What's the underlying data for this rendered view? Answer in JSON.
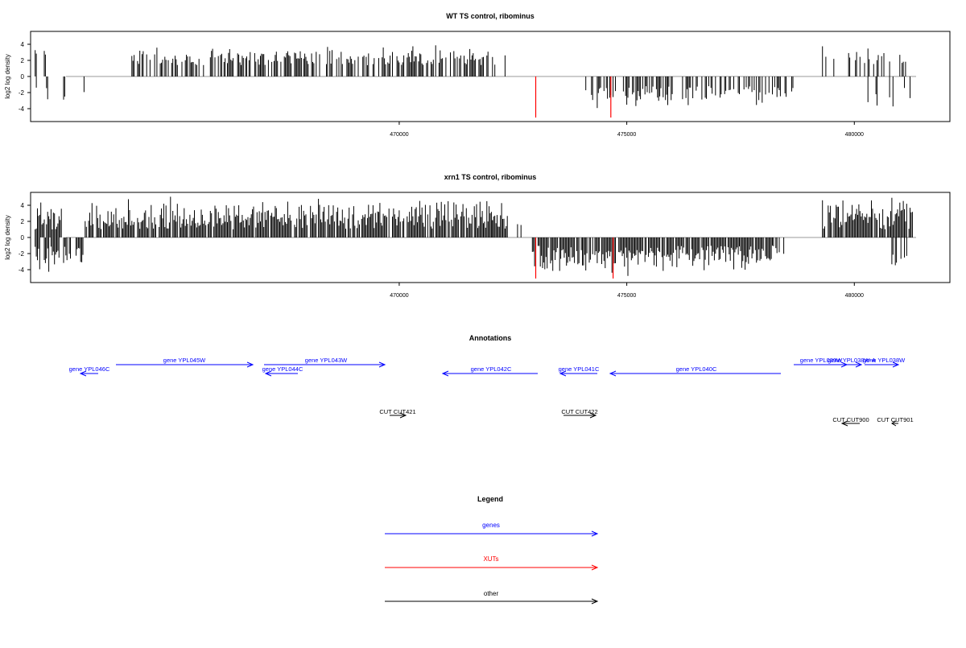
{
  "chart_data": [
    {
      "type": "bar",
      "title": "WT TS control, ribominus",
      "xlabel": "",
      "ylabel": "log2 log density",
      "xlim": [
        461900,
        482100
      ],
      "ylim": [
        -5.6,
        5.6
      ],
      "x_ticks": [
        470000,
        475000,
        480000
      ],
      "x_tick_labels": [
        "470000",
        "475000",
        "480000"
      ],
      "y_ticks": [
        -4,
        -2,
        0,
        2,
        4
      ],
      "y_tick_labels": [
        "-4",
        "-2",
        "0",
        "2",
        "4"
      ],
      "grid": false,
      "bar_color": "#000000",
      "highlight_color": "#ff0000",
      "positive_regions": [
        [
          462000,
          462500,
          0.25
        ],
        [
          464100,
          470600,
          0.55
        ],
        [
          470600,
          472400,
          0.5
        ],
        [
          479200,
          481300,
          0.3
        ]
      ],
      "negative_regions": [
        [
          462000,
          463100,
          0.15
        ],
        [
          474000,
          478800,
          0.45
        ],
        [
          479800,
          480600,
          0.15
        ],
        [
          480600,
          481300,
          0.25
        ]
      ],
      "highlights": [
        [
          473000,
          -5.1
        ],
        [
          474650,
          -5.1
        ]
      ],
      "seed": 7,
      "amp_pos": [
        1.4,
        4.0
      ],
      "amp_neg": [
        1.2,
        4.0
      ]
    },
    {
      "type": "bar",
      "title": "xrn1 TS control, ribominus",
      "xlabel": "",
      "ylabel": "log2 log density",
      "xlim": [
        461900,
        482100
      ],
      "ylim": [
        -5.6,
        5.6
      ],
      "x_ticks": [
        470000,
        475000,
        480000
      ],
      "x_tick_labels": [
        "470000",
        "475000",
        "480000"
      ],
      "y_ticks": [
        -4,
        -2,
        0,
        2,
        4
      ],
      "y_tick_labels": [
        "-4",
        "-2",
        "0",
        "2",
        "4"
      ],
      "grid": false,
      "bar_color": "#000000",
      "highlight_color": "#ff0000",
      "positive_regions": [
        [
          462000,
          462600,
          0.9
        ],
        [
          463100,
          472400,
          0.85
        ],
        [
          472000,
          473000,
          0.15
        ],
        [
          479300,
          481300,
          0.9
        ]
      ],
      "negative_regions": [
        [
          462000,
          463100,
          0.7
        ],
        [
          472900,
          478300,
          0.9
        ],
        [
          478300,
          478500,
          0.3
        ],
        [
          480800,
          481300,
          0.7
        ]
      ],
      "highlights": [
        [
          473000,
          -5.1
        ],
        [
          474700,
          -5.1
        ]
      ],
      "seed": 19,
      "amp_pos": [
        1.0,
        5.2
      ],
      "amp_neg": [
        1.0,
        4.8
      ]
    }
  ],
  "annotations": {
    "title": "Annotations",
    "genes": [
      {
        "label": "gene YPL046C"
      },
      {
        "label": "gene YPL045W"
      },
      {
        "label": "gene YPL044C"
      },
      {
        "label": "gene YPL043W"
      },
      {
        "label": "gene YPL042C"
      },
      {
        "label": "gene YPL041C"
      },
      {
        "label": "gene YPL040C"
      },
      {
        "label": "gene YPL039W"
      },
      {
        "label": "gene YPL038W-A"
      },
      {
        "label": "gene YPL038W"
      }
    ],
    "others": [
      {
        "label": "CUT CUT421"
      },
      {
        "label": "CUT CUT422"
      },
      {
        "label": "CUT CUT900"
      },
      {
        "label": "CUT CUT901"
      }
    ],
    "gene_color": "#0000ff",
    "other_color": "#000000"
  },
  "legend": {
    "title": "Legend",
    "items": [
      {
        "label": "genes",
        "color": "#0000ff"
      },
      {
        "label": "XUTs",
        "color": "#ff0000"
      },
      {
        "label": "other",
        "color": "#000000"
      }
    ]
  }
}
